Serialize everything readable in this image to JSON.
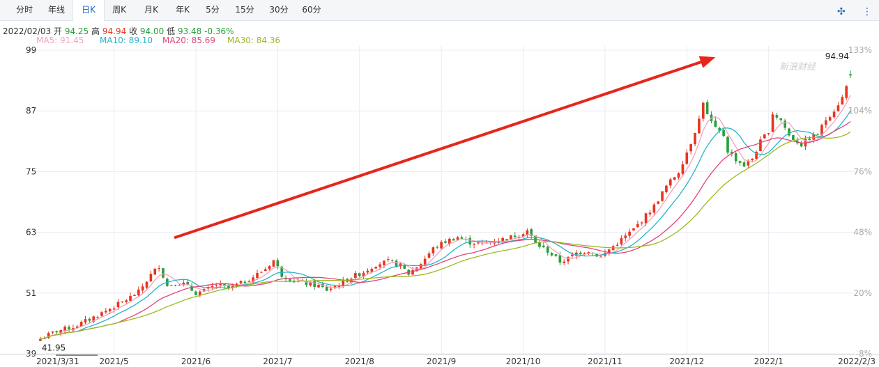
{
  "tabs": [
    {
      "label": "分时",
      "active": false
    },
    {
      "label": "年线",
      "active": false
    },
    {
      "label": "日K",
      "active": true
    },
    {
      "label": "周K",
      "active": false
    },
    {
      "label": "月K",
      "active": false
    },
    {
      "label": "年K",
      "active": false
    },
    {
      "label": "5分",
      "active": false
    },
    {
      "label": "15分",
      "active": false
    },
    {
      "label": "30分",
      "active": false
    },
    {
      "label": "60分",
      "active": false
    }
  ],
  "tools": {
    "compress_icon": "compress-arrows-icon",
    "menu_icon": "vertical-dots-icon"
  },
  "info": {
    "date": "2022/02/03",
    "open_label": "开",
    "open": "94.25",
    "high_label": "高",
    "high": "94.94",
    "close_label": "收",
    "close": "94.00",
    "low_label": "低",
    "low": "93.48",
    "change": "-0.36%"
  },
  "ma": [
    {
      "label": "MA5: 91.45",
      "color": "#f2a3bd"
    },
    {
      "label": "MA10: 89.10",
      "color": "#27b3c9"
    },
    {
      "label": "MA20: 85.69",
      "color": "#e0457a"
    },
    {
      "label": "MA30: 84.36",
      "color": "#9cb820"
    }
  ],
  "watermark": "新浪财经",
  "colors": {
    "up": "#e8351f",
    "down": "#26a03a",
    "grid": "#e8ecf2",
    "arrow": "#e8251a",
    "axis_text": "#333333",
    "pct_text": "#a9a9a9"
  },
  "chart_data": {
    "type": "candlestick",
    "title": "",
    "ylim": [
      39,
      99
    ],
    "y_ticks": [
      "99",
      "87",
      "75",
      "63",
      "51",
      "39"
    ],
    "pct_ticks": [
      "133%",
      "104%",
      "76%",
      "48%",
      "20%",
      "-8%"
    ],
    "x_labels": [
      "2021/3/31",
      "2021/5",
      "2021/6",
      "2021/7",
      "2021/8",
      "2021/9",
      "2021/10",
      "2021/11",
      "2021/12",
      "2022/1",
      "2022/2/3"
    ],
    "x_label_index": [
      0,
      18,
      38,
      58,
      78,
      98,
      118,
      138,
      158,
      178,
      196
    ],
    "min_label": "41.95",
    "max_label": "94.94",
    "grid": true,
    "annotation": "trend-arrow",
    "annotation_arrow": {
      "from": {
        "index": 33,
        "value": 62
      },
      "to": {
        "index": 165,
        "value": 97.6
      }
    },
    "close_path": [
      [
        0,
        41.95
      ],
      [
        4,
        43.5
      ],
      [
        8,
        44.3
      ],
      [
        12,
        45.8
      ],
      [
        16,
        47.5
      ],
      [
        20,
        49.2
      ],
      [
        24,
        51.2
      ],
      [
        27,
        54.6
      ],
      [
        29,
        56.4
      ],
      [
        31,
        52.4
      ],
      [
        33,
        53.1
      ],
      [
        35,
        52.8
      ],
      [
        38,
        51.0
      ],
      [
        40,
        51.4
      ],
      [
        43,
        52.6
      ],
      [
        46,
        52.0
      ],
      [
        49,
        52.9
      ],
      [
        52,
        54.2
      ],
      [
        55,
        55.8
      ],
      [
        57,
        57.5
      ],
      [
        59,
        54.6
      ],
      [
        62,
        53.4
      ],
      [
        65,
        52.9
      ],
      [
        68,
        52.4
      ],
      [
        70,
        51.6
      ],
      [
        73,
        52.7
      ],
      [
        76,
        54.1
      ],
      [
        79,
        55.2
      ],
      [
        82,
        56.7
      ],
      [
        85,
        57.2
      ],
      [
        88,
        56.4
      ],
      [
        90,
        54.8
      ],
      [
        93,
        56.9
      ],
      [
        96,
        59.8
      ],
      [
        99,
        61.2
      ],
      [
        102,
        62.1
      ],
      [
        105,
        61.0
      ],
      [
        108,
        60.7
      ],
      [
        111,
        61.3
      ],
      [
        114,
        61.8
      ],
      [
        117,
        62.6
      ],
      [
        119,
        63.4
      ],
      [
        121,
        60.8
      ],
      [
        124,
        59.3
      ],
      [
        127,
        57.2
      ],
      [
        129,
        57.8
      ],
      [
        131,
        58.9
      ],
      [
        134,
        59.4
      ],
      [
        137,
        58.1
      ],
      [
        139,
        59.6
      ],
      [
        141,
        60.9
      ],
      [
        143,
        62.2
      ],
      [
        145,
        63.6
      ],
      [
        147,
        65.4
      ],
      [
        150,
        68.2
      ],
      [
        153,
        72.1
      ],
      [
        156,
        75.0
      ],
      [
        159,
        80.8
      ],
      [
        161,
        85.3
      ],
      [
        162,
        88.9
      ],
      [
        163,
        86.1
      ],
      [
        165,
        83.4
      ],
      [
        167,
        82.2
      ],
      [
        168,
        79.1
      ],
      [
        170,
        77.4
      ],
      [
        172,
        76.2
      ],
      [
        174,
        77.6
      ],
      [
        176,
        80.9
      ],
      [
        178,
        83.1
      ],
      [
        179,
        86.5
      ],
      [
        181,
        85.2
      ],
      [
        183,
        82.1
      ],
      [
        186,
        80.3
      ],
      [
        188,
        81.6
      ],
      [
        190,
        82.4
      ],
      [
        192,
        85.3
      ],
      [
        194,
        87.2
      ],
      [
        196,
        89.6
      ],
      [
        197,
        91.8
      ],
      [
        198,
        94.0
      ]
    ]
  }
}
